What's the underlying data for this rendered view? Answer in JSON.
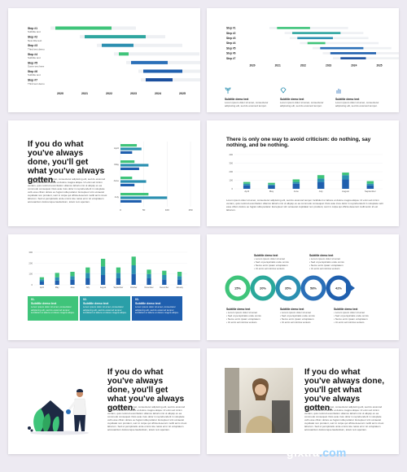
{
  "gantt": {
    "steps": [
      {
        "label": "Step #1",
        "sub": "Subtitle text",
        "start": 2020,
        "end": 2022.3,
        "color": "#3fc47a"
      },
      {
        "label": "Step #2",
        "sub": "New title text",
        "start": 2021.2,
        "end": 2023.7,
        "color": "#2fa6a0"
      },
      {
        "label": "Step #3",
        "sub": "Third text demo",
        "start": 2021.9,
        "end": 2023.2,
        "color": "#2b8fb0"
      },
      {
        "label": "Step #4",
        "sub": "Subtitle text",
        "start": 2022.6,
        "end": 2023,
        "color": "#3fc47a"
      },
      {
        "label": "Step #5",
        "sub": "Some text here",
        "start": 2023.1,
        "end": 2024.6,
        "color": "#2a6fb8"
      },
      {
        "label": "Step #6",
        "sub": "Subtitle text",
        "start": 2023.6,
        "end": 2025.2,
        "color": "#1f5fae"
      },
      {
        "label": "Step #7",
        "sub": "Third text demo",
        "start": 2023.7,
        "end": 2024.8,
        "color": "#1b4f9e"
      }
    ],
    "years": [
      "2020",
      "2021",
      "2022",
      "2023",
      "2024",
      "2025"
    ]
  },
  "gantt2": {
    "steps": [
      {
        "label": "Step #1",
        "start": 2021.1,
        "end": 2022.4,
        "color": "#3fc47a"
      },
      {
        "label": "Step #2",
        "start": 2021.7,
        "end": 2023.6,
        "color": "#2fa6a0"
      },
      {
        "label": "Step #3",
        "start": 2021.9,
        "end": 2023.3,
        "color": "#2b8fb0"
      },
      {
        "label": "Step #4",
        "start": 2022.3,
        "end": 2023,
        "color": "#3fc47a"
      },
      {
        "label": "Step #5",
        "start": 2022.8,
        "end": 2024.5,
        "color": "#2a6fb8"
      },
      {
        "label": "Step #6",
        "start": 2023.2,
        "end": 2025,
        "color": "#1f5fae"
      },
      {
        "label": "Step #7",
        "start": 2023.6,
        "end": 2024.6,
        "color": "#1b4f9e"
      }
    ],
    "years": [
      "2020",
      "2021",
      "2022",
      "2023",
      "2024",
      "2025"
    ],
    "items": [
      {
        "title": "Subtitle demo text",
        "body": "Lorem ipsum dolor sit amet, consectetur adipiscing elit, sed do eiusmod tempor."
      },
      {
        "title": "Subtitle demo text",
        "body": "Lorem ipsum dolor sit amet, consectetur adipiscing elit, sed do eiusmod tempor."
      },
      {
        "title": "Subtitle demo text",
        "body": "Lorem ipsum dolor sit amet, consectetur adipiscing elit, sed do eiusmod tempor."
      }
    ]
  },
  "quote": {
    "heading": "If you do what you've always done, you'll get what you've always gotten.",
    "body": "Lorem ipsum dolor sit amet, consectetur adipiscing elit, sed do eiusmod tempor incididunt ut labore et dolore magna aliqua. Ut enim ad minim veniam, quis nostrud exercitation ullamco laboris nisi ut aliquip ex ea commodo consequat. Duis aute irure dolor in reprehenderit in voluptate velit esse cillum dolore eu fugiat nulla pariatur. Excepteur sint occaecat cupidatat non proident, sunt in culpa qui officia deserunt mollit anim id est laborum. Sed ut perspiciatis unde omnis iste natus error sit voluptatem accusantium doloremque laudantium, totam rem aperiam."
  },
  "hbar": {
    "categories": [
      "April",
      "May",
      "June",
      "July"
    ],
    "series": [
      [
        35,
        30,
        25,
        60
      ],
      [
        45,
        60,
        55,
        100
      ],
      [
        25,
        40,
        30,
        45
      ]
    ],
    "colors": [
      "#3fc47a",
      "#2a8fb0",
      "#1f5fae"
    ],
    "ticks": [
      "0",
      "50",
      "100",
      "150"
    ],
    "xmax": 150
  },
  "s4": {
    "title": "There is only one way to avoid criticism: do nothing, say nothing, and be nothing.",
    "categories": [
      "April",
      "May",
      "June",
      "July",
      "August",
      "September"
    ],
    "series": [
      [
        80,
        70,
        110,
        160,
        190,
        90
      ],
      [
        60,
        50,
        80,
        120,
        160,
        60
      ],
      [
        40,
        40,
        60,
        80,
        110,
        40
      ]
    ],
    "colors": [
      "#3fc47a",
      "#2a8fb0",
      "#1f5fae"
    ],
    "yticks": [
      "0",
      "100",
      "200",
      "300",
      "400"
    ],
    "ymax": 400,
    "body": "Lorem ipsum dolor sit amet, consectetur adipiscing elit, sed do eiusmod tempor incididunt ut labore et dolore magna aliqua. Ut enim ad minim veniam, quis nostrud exercitation ullamco laboris nisi ut aliquip ex ea commodo consequat. Duis aute irure dolor in reprehenderit in voluptate velit esse cillum dolore eu fugiat nulla pariatur. Excepteur sint occaecat cupidatat non proident, sunt in culpa qui officia deserunt mollit anim id est laborum."
  },
  "s5": {
    "categories": [
      "April",
      "May",
      "June",
      "July",
      "August",
      "September",
      "October",
      "November",
      "December",
      "January"
    ],
    "series": [
      [
        70,
        110,
        120,
        160,
        240,
        160,
        260,
        140,
        130,
        120
      ],
      [
        50,
        70,
        80,
        110,
        170,
        110,
        180,
        100,
        90,
        80
      ],
      [
        30,
        40,
        50,
        60,
        90,
        60,
        100,
        60,
        50,
        50
      ]
    ],
    "colors": [
      "#3fc47a",
      "#2a8fb0",
      "#1f5fae"
    ],
    "yticks": [
      "0",
      "100",
      "200",
      "300"
    ],
    "ymax": 300,
    "cards": [
      {
        "num": "01.",
        "title": "Subtitle demo text",
        "body": "Lorem ipsum dolor sit amet, consectetur adipiscing elit, sed do eiusmod tempor incididunt ut labore et dolore magna aliqua.",
        "color": "#3fc47a"
      },
      {
        "num": "02.",
        "title": "Subtitle demo text",
        "body": "Lorem ipsum dolor sit amet, consectetur adipiscing elit, sed do eiusmod tempor incididunt ut labore et dolore magna aliqua.",
        "color": "#2a9fa8"
      },
      {
        "num": "03.",
        "title": "Subtitle demo text",
        "body": "Lorem ipsum dolor sit amet, consectetur adipiscing elit, sed do eiusmod tempor incididunt ut labore et dolore magna aliqua.",
        "color": "#1f5fae"
      }
    ]
  },
  "s6": {
    "percents": [
      "15%",
      "20%",
      "35%",
      "58%",
      "42%"
    ],
    "colors": [
      "#3fc47a",
      "#2aa89a",
      "#2a8fb0",
      "#2a6fb8",
      "#1f5fae"
    ],
    "top": [
      {
        "title": "Subtitle demo text",
        "lines": [
          "Lorem ipsum dolor sit amet",
          "Sed ut perspiciatis unde omnis",
          "Nemo enim ipsam voluptatem",
          "Ut enim ad minima veniam"
        ]
      },
      {
        "title": "Subtitle demo text",
        "lines": [
          "Lorem ipsum dolor sit amet",
          "Sed ut perspiciatis unde omnis",
          "Nemo enim ipsam voluptatem",
          "Ut enim ad minima veniam"
        ]
      }
    ],
    "bottom": [
      {
        "title": "Subtitle demo text",
        "lines": [
          "Lorem ipsum dolor sit amet",
          "Sed ut perspiciatis unde omnis",
          "Nemo enim ipsam voluptatem",
          "Ut enim ad minima veniam"
        ]
      },
      {
        "title": "Subtitle demo text",
        "lines": [
          "Lorem ipsum dolor sit amet",
          "Sed ut perspiciatis unde omnis",
          "Nemo enim ipsam voluptatem",
          "Ut enim ad minima veniam"
        ]
      },
      {
        "title": "Subtitle demo text",
        "lines": [
          "Lorem ipsum dolor sit amet",
          "Sed ut perspiciatis unde omnis",
          "Nemo enim ipsam voluptatem",
          "Ut enim ad minima veniam"
        ]
      }
    ]
  },
  "watermark": {
    "name": "gfxtra",
    "dom": ".com"
  }
}
